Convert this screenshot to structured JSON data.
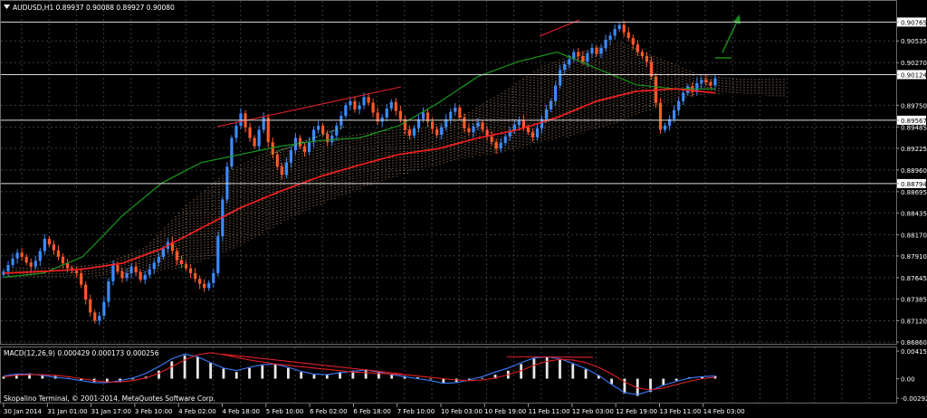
{
  "header": {
    "symbol_info": "AUDUSD,H1  0.89937 0.90088 0.89927 0.90080"
  },
  "macd_panel": {
    "label": "MACD(12,26,9) 0.000429 0.000173 0.000256",
    "ticks": [
      "0.00415",
      "0.00",
      "-0.00292"
    ]
  },
  "copyright": "Skopalino Terminal, © 2001-2014, MetaQuotes Software Corp.",
  "price_axis": {
    "ticks": [
      "0.90765",
      "0.90535",
      "0.90270",
      "0.90124",
      "0.89750",
      "0.89567",
      "0.89485",
      "0.89225",
      "0.88960",
      "0.88794",
      "0.88695",
      "0.88435",
      "0.88170",
      "0.87910",
      "0.87645",
      "0.87385",
      "0.87120",
      "0.86860"
    ],
    "highlighted": [
      "0.90765",
      "0.90124",
      "0.89567",
      "0.88794"
    ]
  },
  "time_axis": {
    "ticks": [
      "30 Jan 2014",
      "31 Jan 01:00",
      "31 Jan 17:00",
      "3 Feb 10:00",
      "4 Feb 02:00",
      "4 Feb 18:00",
      "5 Feb 10:00",
      "6 Feb 02:00",
      "6 Feb 18:00",
      "7 Feb 10:00",
      "10 Feb 03:00",
      "10 Feb 19:00",
      "11 Feb 11:00",
      "12 Feb 03:00",
      "12 Feb 19:00",
      "13 Feb 11:00",
      "14 Feb 03:00"
    ]
  },
  "colors": {
    "background": "#000000",
    "grid": "#3c3c3c",
    "bull_candle": "#3d8bff",
    "bear_candle": "#ff5a2a",
    "ma_fast": "#ff1e1e",
    "ma_slow": "#179a1d",
    "ichimoku_cloud": "#f2b48a",
    "trendline": "#e0202a",
    "arrow": "#1a8a1a",
    "macd_hist": "#e8e8e8",
    "macd_line": "#3a7bff",
    "signal_line": "#e02020"
  },
  "chart_data": {
    "type": "candlestick",
    "symbol": "AUDUSD",
    "timeframe": "H1",
    "last_bar": {
      "open": 0.89937,
      "high": 0.90088,
      "low": 0.89927,
      "close": 0.9008
    },
    "horizontal_levels": [
      0.90765,
      0.90124,
      0.89567,
      0.88794
    ],
    "ylim": [
      0.8686,
      0.9088
    ],
    "close_series": [
      0.8772,
      0.878,
      0.8788,
      0.8795,
      0.879,
      0.8783,
      0.8778,
      0.8785,
      0.8797,
      0.8812,
      0.8805,
      0.8798,
      0.879,
      0.8782,
      0.8776,
      0.8773,
      0.877,
      0.8756,
      0.8738,
      0.8722,
      0.8712,
      0.8718,
      0.8735,
      0.876,
      0.878,
      0.8772,
      0.8764,
      0.877,
      0.8778,
      0.8771,
      0.8762,
      0.8768,
      0.8775,
      0.8783,
      0.879,
      0.88,
      0.8808,
      0.8797,
      0.8786,
      0.8781,
      0.8776,
      0.877,
      0.8763,
      0.8757,
      0.8752,
      0.8758,
      0.877,
      0.8815,
      0.886,
      0.89,
      0.8935,
      0.895,
      0.8965,
      0.8948,
      0.8935,
      0.8925,
      0.8945,
      0.896,
      0.893,
      0.8915,
      0.89,
      0.889,
      0.8905,
      0.892,
      0.8935,
      0.8925,
      0.8918,
      0.893,
      0.8945,
      0.895,
      0.894,
      0.893,
      0.8938,
      0.895,
      0.8962,
      0.8975,
      0.898,
      0.897,
      0.8975,
      0.8985,
      0.8978,
      0.8966,
      0.8955,
      0.896,
      0.8971,
      0.8979,
      0.8968,
      0.8958,
      0.8945,
      0.8938,
      0.8947,
      0.8958,
      0.8966,
      0.8955,
      0.8946,
      0.8939,
      0.8948,
      0.8958,
      0.8967,
      0.8972,
      0.896,
      0.8947,
      0.8942,
      0.8949,
      0.8954,
      0.8945,
      0.8937,
      0.893,
      0.8922,
      0.8929,
      0.8937,
      0.8944,
      0.8951,
      0.8957,
      0.8948,
      0.8942,
      0.8936,
      0.8947,
      0.8958,
      0.897,
      0.898,
      0.8999,
      0.9018,
      0.9025,
      0.9031,
      0.904,
      0.9035,
      0.9028,
      0.9038,
      0.9045,
      0.9038,
      0.9045,
      0.9055,
      0.906,
      0.9068,
      0.9073,
      0.9064,
      0.9057,
      0.9049,
      0.904,
      0.9035,
      0.9028,
      0.901,
      0.8978,
      0.8945,
      0.895,
      0.8958,
      0.8969,
      0.898,
      0.899,
      0.8998,
      0.8991,
      0.9002,
      0.9006,
      0.9003,
      0.8999,
      0.9008
    ],
    "ma_fast": [
      0.877,
      0.8772,
      0.8775,
      0.8782,
      0.88,
      0.8825,
      0.885,
      0.887,
      0.8888,
      0.8902,
      0.8915,
      0.8922,
      0.8935,
      0.8945,
      0.896,
      0.898,
      0.8992,
      0.8995,
      0.899
    ],
    "ma_slow": [
      0.8765,
      0.877,
      0.879,
      0.884,
      0.888,
      0.8905,
      0.8915,
      0.8925,
      0.8932,
      0.8935,
      0.895,
      0.8978,
      0.901,
      0.9028,
      0.904,
      0.902,
      0.9,
      0.8995,
      0.8995
    ],
    "macd_range": [
      -0.00292,
      0.00415
    ],
    "macd_hist": [
      0.0003,
      0.0007,
      0.0008,
      0.0006,
      0.0004,
      0.0001,
      -0.0002,
      -0.0005,
      -0.0006,
      -0.0004,
      -0.0001,
      0.0003,
      0.0012,
      0.0026,
      0.0035,
      0.0033,
      0.0024,
      0.0015,
      0.001,
      0.0016,
      0.002,
      0.0021,
      0.0016,
      0.001,
      0.0006,
      0.0006,
      0.001,
      0.0012,
      0.0014,
      0.001,
      0.0007,
      0.0004,
      0.0002,
      -0.0001,
      -0.0006,
      -0.0005,
      -0.0002,
      0.0001,
      0.0006,
      0.0012,
      0.0022,
      0.003,
      0.0032,
      0.0029,
      0.0022,
      0.0014,
      0.0005,
      -0.0008,
      -0.0022,
      -0.0026,
      -0.002,
      -0.001,
      -0.0003,
      0.0002,
      0.0003,
      0.0004
    ],
    "macd_line": [
      0.0004,
      0.0007,
      0.0007,
      0.0005,
      0.0002,
      0.0,
      -0.0003,
      -0.0006,
      -0.0006,
      -0.0003,
      0.0001,
      0.0008,
      0.0018,
      0.003,
      0.0037,
      0.0033,
      0.0024,
      0.0016,
      0.0012,
      0.0017,
      0.0021,
      0.0022,
      0.0017,
      0.0011,
      0.0007,
      0.0006,
      0.0009,
      0.0011,
      0.0013,
      0.001,
      0.0006,
      0.0003,
      0.0,
      -0.0003,
      -0.0007,
      -0.0006,
      -0.0002,
      0.0003,
      0.001,
      0.0016,
      0.0024,
      0.0031,
      0.0033,
      0.003,
      0.0023,
      0.0015,
      0.0005,
      -0.0009,
      -0.0021,
      -0.0024,
      -0.0018,
      -0.001,
      -0.0004,
      0.0001,
      0.0003,
      0.0004
    ],
    "signal_line": [
      0.0003,
      0.0005,
      0.0006,
      0.0006,
      0.0005,
      0.0003,
      0.0,
      -0.0003,
      -0.0005,
      -0.0005,
      -0.0003,
      0.0001,
      0.0008,
      0.0018,
      0.0028,
      0.0036,
      0.0039,
      0.0036,
      0.0032,
      0.0028,
      0.0025,
      0.0022,
      0.002,
      0.0018,
      0.0016,
      0.0014,
      0.0012,
      0.001,
      0.0009,
      0.0008,
      0.0007,
      0.0006,
      0.0004,
      0.0002,
      0.0,
      -0.0002,
      -0.0003,
      -0.0002,
      0.0001,
      0.0006,
      0.0012,
      0.002,
      0.0026,
      0.0029,
      0.0028,
      0.0024,
      0.0017,
      0.0007,
      -0.0005,
      -0.0014,
      -0.0017,
      -0.0014,
      -0.0009,
      -0.0004,
      0.0,
      0.0002
    ],
    "legend": "top-left"
  }
}
